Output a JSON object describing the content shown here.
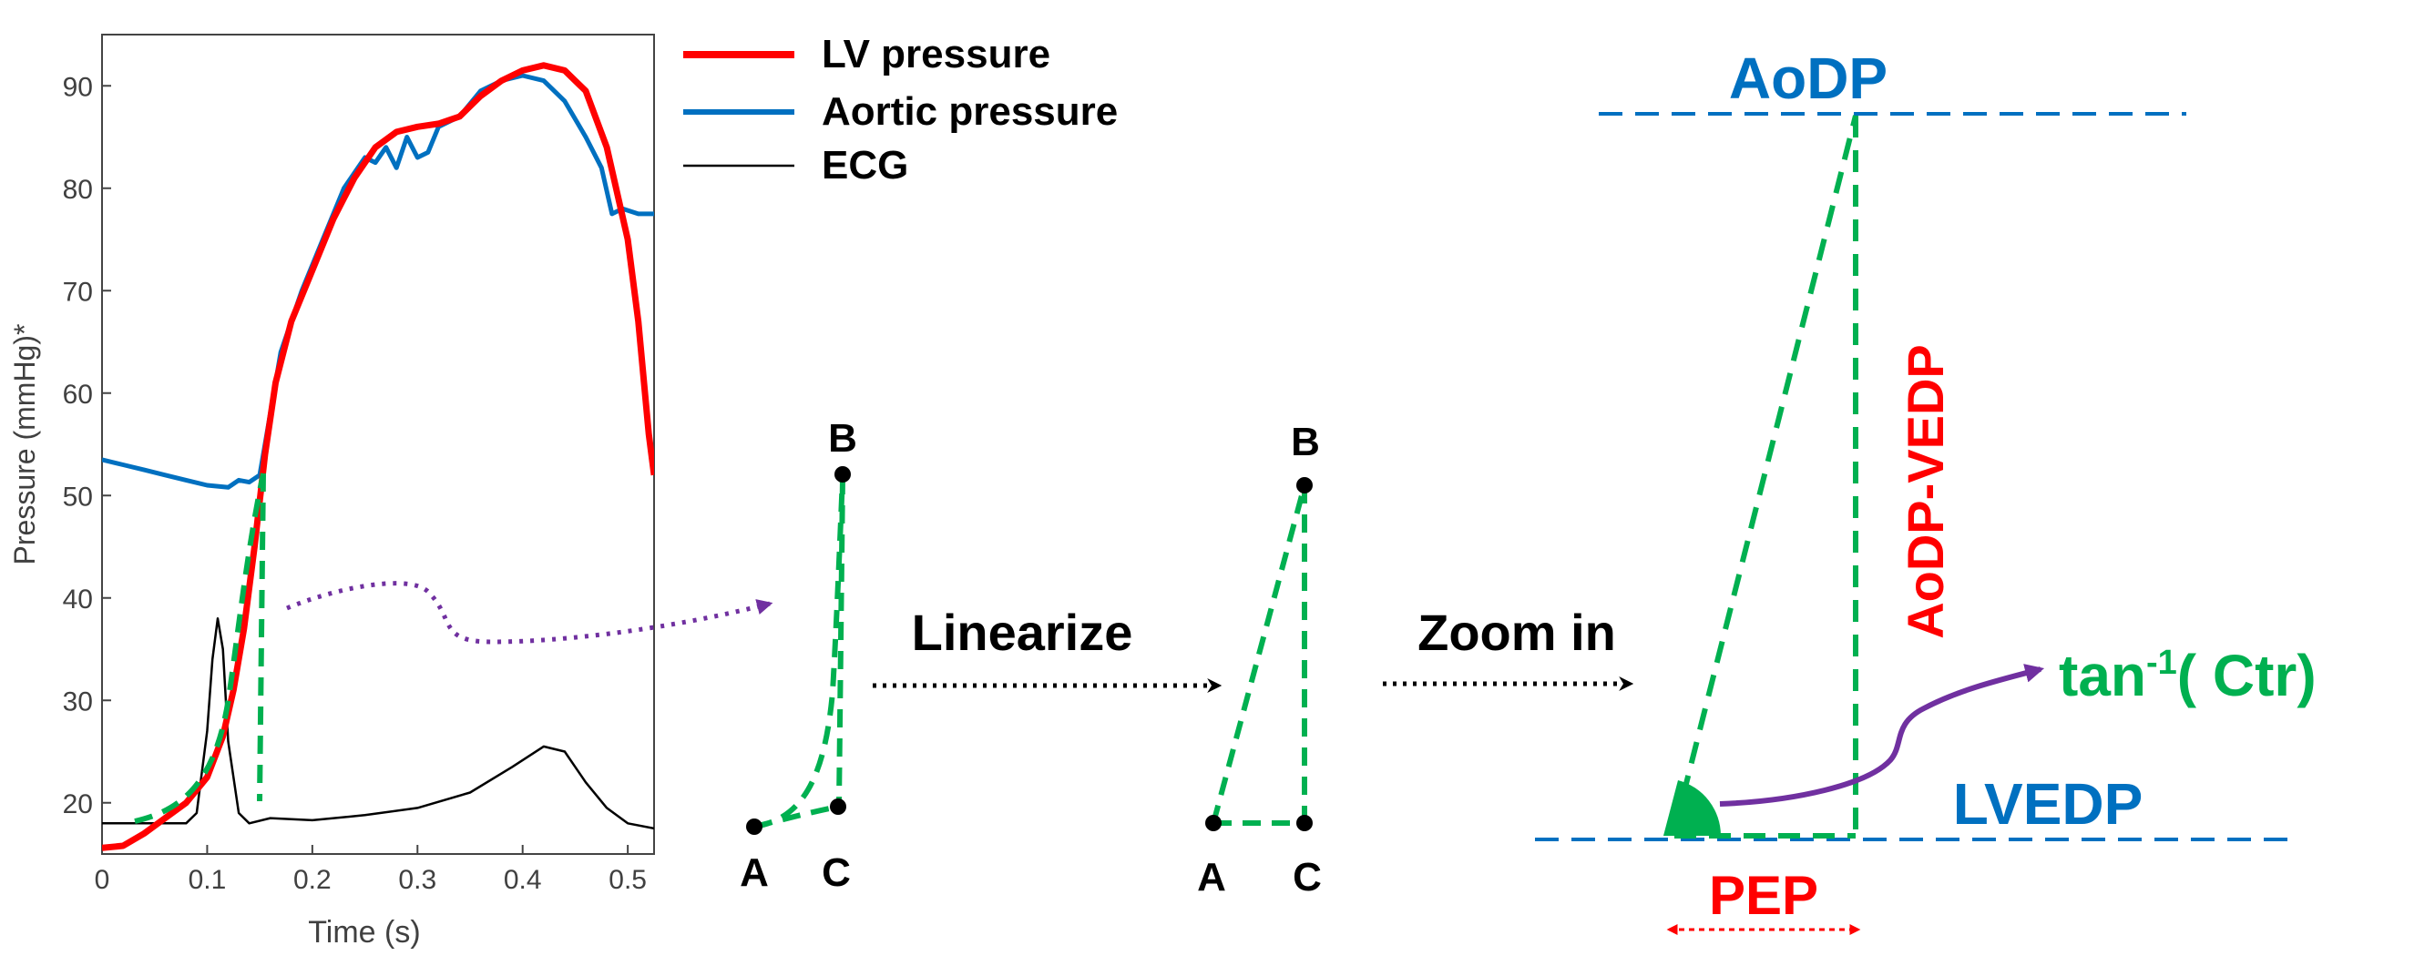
{
  "chart_data": {
    "type": "line",
    "xlabel": "Time (s)",
    "ylabel": "Pressure (mmHg)*",
    "xlim": [
      0,
      0.525
    ],
    "ylim": [
      15,
      95
    ],
    "x_ticks": [
      0,
      0.1,
      0.2,
      0.3,
      0.4,
      0.5
    ],
    "x_tick_labels": [
      "0",
      "0.1",
      "0.2",
      "0.3",
      "0.4",
      "0.5"
    ],
    "y_ticks": [
      20,
      30,
      40,
      50,
      60,
      70,
      80,
      90
    ],
    "y_tick_labels": [
      "20",
      "30",
      "40",
      "50",
      "60",
      "70",
      "80",
      "90"
    ],
    "legend_position": "top-right, outside",
    "series": [
      {
        "name": "LV pressure",
        "color": "#ff0000",
        "points": [
          [
            0,
            15.6
          ],
          [
            0.02,
            15.8
          ],
          [
            0.04,
            17
          ],
          [
            0.06,
            18.5
          ],
          [
            0.08,
            20
          ],
          [
            0.1,
            22.5
          ],
          [
            0.115,
            26.5
          ],
          [
            0.125,
            31
          ],
          [
            0.135,
            37
          ],
          [
            0.145,
            45
          ],
          [
            0.155,
            54
          ],
          [
            0.165,
            61
          ],
          [
            0.18,
            67
          ],
          [
            0.2,
            72
          ],
          [
            0.22,
            77
          ],
          [
            0.24,
            81
          ],
          [
            0.26,
            84
          ],
          [
            0.28,
            85.5
          ],
          [
            0.3,
            86
          ],
          [
            0.32,
            86.3
          ],
          [
            0.34,
            87
          ],
          [
            0.36,
            89
          ],
          [
            0.38,
            90.5
          ],
          [
            0.4,
            91.5
          ],
          [
            0.42,
            92
          ],
          [
            0.44,
            91.5
          ],
          [
            0.46,
            89.5
          ],
          [
            0.48,
            84
          ],
          [
            0.5,
            75
          ],
          [
            0.51,
            67
          ],
          [
            0.52,
            56
          ],
          [
            0.525,
            52
          ]
        ]
      },
      {
        "name": "Aortic pressure",
        "color": "#0070c0",
        "points": [
          [
            0,
            53.5
          ],
          [
            0.02,
            53
          ],
          [
            0.04,
            52.5
          ],
          [
            0.06,
            52
          ],
          [
            0.08,
            51.5
          ],
          [
            0.1,
            51
          ],
          [
            0.12,
            50.8
          ],
          [
            0.13,
            51.5
          ],
          [
            0.14,
            51.3
          ],
          [
            0.15,
            52
          ],
          [
            0.16,
            58
          ],
          [
            0.17,
            64
          ],
          [
            0.19,
            70
          ],
          [
            0.21,
            75
          ],
          [
            0.23,
            80
          ],
          [
            0.25,
            83
          ],
          [
            0.26,
            82.5
          ],
          [
            0.27,
            84
          ],
          [
            0.28,
            82
          ],
          [
            0.29,
            85
          ],
          [
            0.3,
            83
          ],
          [
            0.31,
            83.5
          ],
          [
            0.32,
            86
          ],
          [
            0.34,
            87
          ],
          [
            0.36,
            89.5
          ],
          [
            0.38,
            90.5
          ],
          [
            0.4,
            91
          ],
          [
            0.42,
            90.5
          ],
          [
            0.44,
            88.5
          ],
          [
            0.46,
            85
          ],
          [
            0.475,
            82
          ],
          [
            0.485,
            77.5
          ],
          [
            0.495,
            78
          ],
          [
            0.51,
            77.5
          ],
          [
            0.525,
            77.5
          ]
        ]
      },
      {
        "name": "ECG",
        "color": "#000000",
        "points": [
          [
            0,
            18
          ],
          [
            0.04,
            18
          ],
          [
            0.07,
            18
          ],
          [
            0.08,
            18
          ],
          [
            0.09,
            19
          ],
          [
            0.1,
            27
          ],
          [
            0.105,
            34
          ],
          [
            0.11,
            38
          ],
          [
            0.115,
            35
          ],
          [
            0.12,
            26
          ],
          [
            0.13,
            19
          ],
          [
            0.14,
            18
          ],
          [
            0.16,
            18.5
          ],
          [
            0.2,
            18.3
          ],
          [
            0.25,
            18.8
          ],
          [
            0.3,
            19.5
          ],
          [
            0.35,
            21
          ],
          [
            0.39,
            23.5
          ],
          [
            0.42,
            25.5
          ],
          [
            0.44,
            25
          ],
          [
            0.46,
            22
          ],
          [
            0.48,
            19.5
          ],
          [
            0.5,
            18
          ],
          [
            0.525,
            17.5
          ]
        ]
      }
    ]
  },
  "diagram": {
    "linearize_label": "Linearize",
    "zoom_label": "Zoom in",
    "points": {
      "a": "A",
      "b": "B",
      "c": "C"
    },
    "aodp_label": "AoDP",
    "lvedp_label": "LVEDP",
    "diff_label": "AoDP-VEDP",
    "pep_label": "PEP",
    "ctr_prefix": "tan",
    "ctr_sup": "-1",
    "ctr_suffix": "( Ctr)",
    "colors": {
      "lv": "#ff0000",
      "aortic": "#0070c0",
      "ecg": "#000000",
      "green": "#00b050",
      "purple": "#7030a0",
      "blue": "#0070c0",
      "red": "#ff0000"
    }
  }
}
